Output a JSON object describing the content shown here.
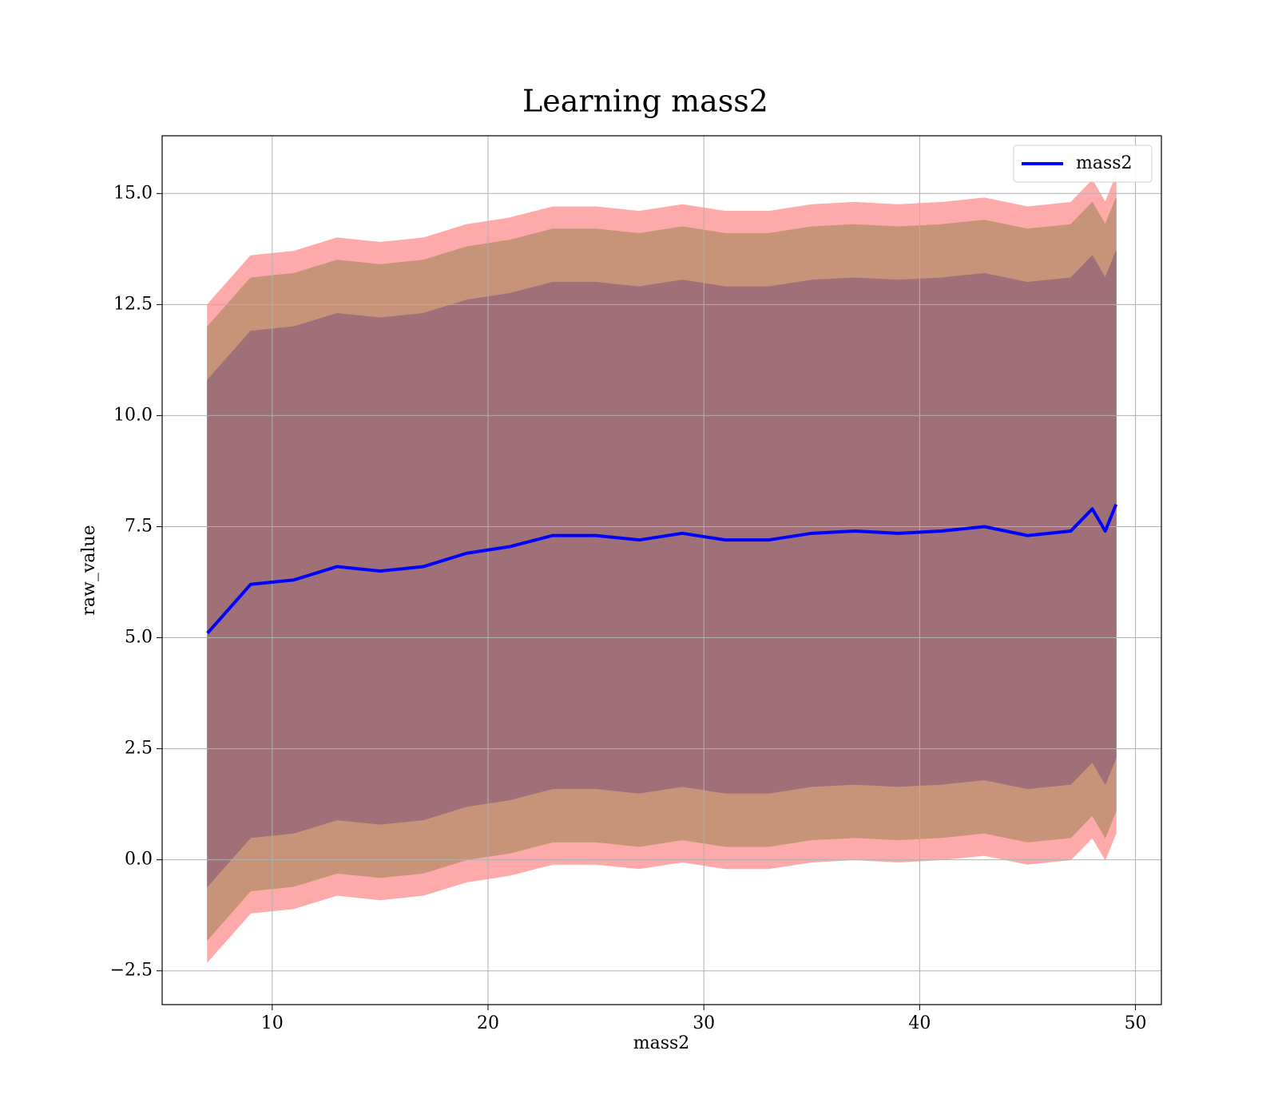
{
  "chart_data": {
    "type": "line",
    "title": "Learning mass2",
    "xlabel": "mass2",
    "ylabel": "raw_value",
    "x": [
      7,
      9,
      11,
      13,
      15,
      17,
      19,
      21,
      23,
      25,
      27,
      29,
      31,
      33,
      35,
      37,
      39,
      41,
      43,
      45,
      47,
      48,
      48.6,
      49.1
    ],
    "series": [
      {
        "name": "mass2",
        "color": "#0000ff",
        "values": [
          5.1,
          6.2,
          6.3,
          6.6,
          6.5,
          6.6,
          6.9,
          7.05,
          7.3,
          7.3,
          7.2,
          7.35,
          7.2,
          7.2,
          7.35,
          7.4,
          7.35,
          7.4,
          7.5,
          7.3,
          7.4,
          7.9,
          7.4,
          8.0
        ]
      }
    ],
    "bands": [
      {
        "color": "#ffaaaa",
        "upper": [
          12.5,
          13.6,
          13.7,
          14.0,
          13.9,
          14.0,
          14.3,
          14.45,
          14.7,
          14.7,
          14.6,
          14.75,
          14.6,
          14.6,
          14.75,
          14.8,
          14.75,
          14.8,
          14.9,
          14.7,
          14.8,
          15.3,
          14.8,
          15.4
        ],
        "lower": [
          -2.3,
          -1.2,
          -1.1,
          -0.8,
          -0.9,
          -0.8,
          -0.5,
          -0.35,
          -0.1,
          -0.1,
          -0.2,
          -0.05,
          -0.2,
          -0.2,
          -0.05,
          0,
          -0.05,
          0,
          0.1,
          -0.1,
          0,
          0.5,
          0,
          0.6
        ]
      },
      {
        "color": "#c89479",
        "upper": [
          12.0,
          13.1,
          13.2,
          13.5,
          13.4,
          13.5,
          13.8,
          13.95,
          14.2,
          14.2,
          14.1,
          14.25,
          14.1,
          14.1,
          14.25,
          14.3,
          14.25,
          14.3,
          14.4,
          14.2,
          14.3,
          14.8,
          14.3,
          14.9
        ],
        "lower": [
          -1.8,
          -0.7,
          -0.6,
          -0.3,
          -0.4,
          -0.3,
          0,
          0.15,
          0.4,
          0.4,
          0.3,
          0.45,
          0.3,
          0.3,
          0.45,
          0.5,
          0.45,
          0.5,
          0.6,
          0.4,
          0.5,
          1.0,
          0.5,
          1.1
        ]
      },
      {
        "color": "#a07078",
        "upper": [
          10.8,
          11.9,
          12.0,
          12.3,
          12.2,
          12.3,
          12.6,
          12.75,
          13.0,
          13.0,
          12.9,
          13.05,
          12.9,
          12.9,
          13.05,
          13.1,
          13.05,
          13.1,
          13.2,
          13.0,
          13.1,
          13.6,
          13.1,
          13.7
        ],
        "lower": [
          -0.6,
          0.5,
          0.6,
          0.9,
          0.8,
          0.9,
          1.2,
          1.35,
          1.6,
          1.6,
          1.5,
          1.65,
          1.5,
          1.5,
          1.65,
          1.7,
          1.65,
          1.7,
          1.8,
          1.6,
          1.7,
          2.2,
          1.7,
          2.3
        ]
      }
    ],
    "xlim": [
      4.9,
      51.2
    ],
    "ylim": [
      -3.26,
      16.3
    ],
    "xticks": [
      10,
      20,
      30,
      40,
      50
    ],
    "yticks": [
      {
        "value": -2.5,
        "label": "−2.5"
      },
      {
        "value": 0,
        "label": "0.0"
      },
      2.5,
      {
        "value": 5,
        "label": "5.0"
      },
      7.5,
      {
        "value": 10,
        "label": "10.0"
      },
      12.5,
      {
        "value": 15,
        "label": "15.0"
      }
    ],
    "grid": true,
    "legend": "upper right"
  }
}
